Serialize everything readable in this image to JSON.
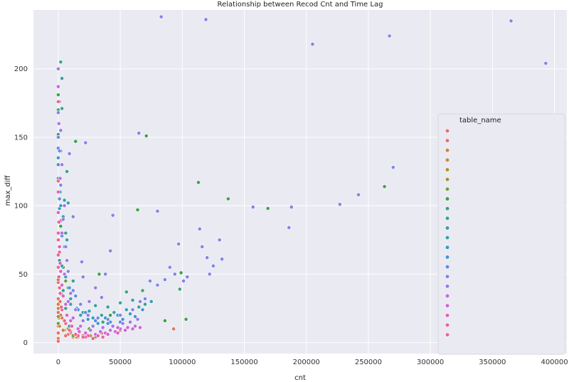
{
  "chart_data": {
    "type": "scatter",
    "title": "Relationship between Recod Cnt and Time Lag",
    "xlabel": "cnt",
    "ylabel": "max_diff",
    "xlim": [
      -20000,
      410000
    ],
    "ylim": [
      -8,
      243
    ],
    "xticks": [
      0,
      50000,
      100000,
      150000,
      200000,
      250000,
      300000,
      350000,
      400000
    ],
    "yticks": [
      0,
      50,
      100,
      150,
      200
    ],
    "grid": true,
    "background": "#eaeaf2",
    "legend": {
      "title": "table_name",
      "placement": "right",
      "colors": [
        "#e8697a",
        "#e07460",
        "#d77f3d",
        "#c8883b",
        "#ad9133",
        "#8f9a34",
        "#6da23a",
        "#3ca34b",
        "#3ca475",
        "#3aa38c",
        "#39a19b",
        "#39a0ab",
        "#3a9dbb",
        "#4496d2",
        "#5c8de0",
        "#8184e6",
        "#9e78e5",
        "#bb6de0",
        "#d164d4",
        "#e05fc0",
        "#e862a4",
        "#ea6886"
      ]
    },
    "series": [
      {
        "color": "#e8697a",
        "points": [
          [
            0,
            22
          ],
          [
            0,
            44
          ],
          [
            800,
            60
          ],
          [
            1000,
            66
          ],
          [
            2000,
            89
          ],
          [
            5000,
            9
          ],
          [
            8000,
            6
          ],
          [
            12000,
            4
          ],
          [
            20000,
            5
          ],
          [
            35000,
            7
          ],
          [
            0,
            12
          ],
          [
            0,
            2
          ],
          [
            3000,
            18
          ]
        ]
      },
      {
        "color": "#e07460",
        "points": [
          [
            0,
            32
          ],
          [
            1500,
            30
          ],
          [
            6000,
            5
          ],
          [
            30000,
            6
          ],
          [
            93000,
            10
          ],
          [
            0,
            7
          ]
        ]
      },
      {
        "color": "#d77f3d",
        "points": [
          [
            0,
            28
          ],
          [
            1000,
            12
          ],
          [
            4000,
            9
          ],
          [
            16000,
            4
          ],
          [
            50000,
            9
          ],
          [
            0,
            3
          ]
        ]
      },
      {
        "color": "#c8883b",
        "points": [
          [
            0,
            25
          ],
          [
            500,
            18
          ],
          [
            10000,
            7
          ],
          [
            40000,
            6
          ]
        ]
      },
      {
        "color": "#ad9133",
        "points": [
          [
            0,
            46
          ],
          [
            2000,
            20
          ],
          [
            15000,
            4
          ],
          [
            26000,
            5
          ]
        ]
      },
      {
        "color": "#8f9a34",
        "points": [
          [
            0,
            19
          ],
          [
            8000,
            10
          ],
          [
            30000,
            4
          ]
        ]
      },
      {
        "color": "#6da23a",
        "points": [
          [
            0,
            14
          ],
          [
            6000,
            45
          ],
          [
            12000,
            5
          ],
          [
            60000,
            10
          ]
        ]
      },
      {
        "color": "#3ca34b",
        "points": [
          [
            0,
            181
          ],
          [
            2000,
            85
          ],
          [
            4000,
            55
          ],
          [
            8000,
            40
          ],
          [
            14000,
            147
          ],
          [
            33000,
            50
          ],
          [
            42000,
            20
          ],
          [
            64000,
            97
          ],
          [
            71000,
            151
          ],
          [
            86000,
            16
          ],
          [
            103000,
            17
          ],
          [
            99000,
            51
          ],
          [
            113000,
            117
          ],
          [
            137000,
            105
          ],
          [
            169000,
            98
          ],
          [
            263000,
            114
          ],
          [
            8000,
            30
          ],
          [
            25000,
            10
          ]
        ]
      },
      {
        "color": "#3ca475",
        "points": [
          [
            0,
            152
          ],
          [
            1000,
            60
          ],
          [
            3000,
            35
          ],
          [
            9000,
            12
          ],
          [
            36000,
            15
          ],
          [
            55000,
            37
          ],
          [
            68000,
            38
          ],
          [
            98000,
            39
          ]
        ]
      },
      {
        "color": "#3aa38c",
        "points": [
          [
            0,
            170
          ],
          [
            2000,
            80
          ],
          [
            3000,
            171
          ],
          [
            7000,
            125
          ],
          [
            12000,
            45
          ],
          [
            6000,
            25
          ],
          [
            4000,
            38
          ]
        ]
      },
      {
        "color": "#39a19b",
        "points": [
          [
            500,
            150
          ],
          [
            2000,
            140
          ],
          [
            5000,
            104
          ],
          [
            6000,
            80
          ],
          [
            10000,
            32
          ],
          [
            20000,
            22
          ],
          [
            30000,
            27
          ],
          [
            40000,
            26
          ],
          [
            50000,
            29
          ],
          [
            60000,
            31
          ],
          [
            70000,
            28
          ],
          [
            3000,
            193
          ],
          [
            2000,
            205
          ]
        ]
      },
      {
        "color": "#39a0ab",
        "points": [
          [
            0,
            120
          ],
          [
            1500,
            110
          ],
          [
            4000,
            92
          ],
          [
            7000,
            75
          ],
          [
            15000,
            25
          ],
          [
            25000,
            23
          ],
          [
            35000,
            20
          ],
          [
            45000,
            22
          ],
          [
            55000,
            24
          ],
          [
            65000,
            26
          ]
        ]
      },
      {
        "color": "#3a9dbb",
        "points": [
          [
            0,
            130
          ],
          [
            1000,
            98
          ],
          [
            3000,
            56
          ],
          [
            6000,
            48
          ],
          [
            10000,
            28
          ],
          [
            18000,
            20
          ],
          [
            28000,
            18
          ],
          [
            38000,
            18
          ],
          [
            48000,
            20
          ],
          [
            58000,
            21
          ],
          [
            68000,
            24
          ],
          [
            75000,
            30
          ],
          [
            8000,
            102
          ]
        ]
      },
      {
        "color": "#4496d2",
        "points": [
          [
            0,
            135
          ],
          [
            2000,
            100
          ],
          [
            5000,
            70
          ],
          [
            9000,
            40
          ],
          [
            16000,
            24
          ],
          [
            24000,
            17
          ],
          [
            32000,
            14
          ],
          [
            42000,
            15
          ],
          [
            52000,
            17
          ],
          [
            62000,
            19
          ]
        ]
      },
      {
        "color": "#5c8de0",
        "points": [
          [
            0,
            142
          ],
          [
            1000,
            105
          ],
          [
            3000,
            78
          ],
          [
            8000,
            52
          ],
          [
            14000,
            34
          ],
          [
            22000,
            22
          ],
          [
            30000,
            16
          ],
          [
            40000,
            14
          ],
          [
            50000,
            15
          ]
        ]
      },
      {
        "color": "#8184e6",
        "points": [
          [
            0,
            168
          ],
          [
            0,
            150
          ],
          [
            1000,
            140
          ],
          [
            2000,
            115
          ],
          [
            4000,
            90
          ],
          [
            6000,
            70
          ],
          [
            8000,
            52
          ],
          [
            12000,
            38
          ],
          [
            18000,
            28
          ],
          [
            24000,
            20
          ],
          [
            32000,
            18
          ],
          [
            40000,
            17
          ],
          [
            50000,
            20
          ],
          [
            60000,
            24
          ],
          [
            66000,
            30
          ],
          [
            70000,
            32
          ],
          [
            74000,
            45
          ],
          [
            80000,
            42
          ],
          [
            86000,
            46
          ],
          [
            90000,
            55
          ],
          [
            94000,
            50
          ],
          [
            97000,
            72
          ],
          [
            101000,
            45
          ],
          [
            104000,
            48
          ],
          [
            114000,
            83
          ],
          [
            116000,
            70
          ],
          [
            120000,
            62
          ],
          [
            122000,
            50
          ],
          [
            125000,
            56
          ],
          [
            130000,
            75
          ],
          [
            132000,
            61
          ],
          [
            157000,
            99
          ],
          [
            186000,
            84
          ],
          [
            188000,
            99
          ],
          [
            227000,
            101
          ],
          [
            242000,
            108
          ],
          [
            270000,
            128
          ],
          [
            83000,
            238
          ],
          [
            119000,
            236
          ],
          [
            205000,
            218
          ],
          [
            267000,
            224
          ],
          [
            365000,
            235
          ],
          [
            393000,
            204
          ],
          [
            22000,
            146
          ],
          [
            44000,
            93
          ],
          [
            65000,
            153
          ],
          [
            80000,
            96
          ],
          [
            42000,
            67
          ],
          [
            19000,
            59
          ],
          [
            20000,
            48
          ],
          [
            38000,
            50
          ],
          [
            12000,
            92
          ],
          [
            9000,
            138
          ]
        ]
      },
      {
        "color": "#9e78e5",
        "points": [
          [
            0,
            200
          ],
          [
            1000,
            176
          ],
          [
            2000,
            155
          ],
          [
            3000,
            130
          ],
          [
            5000,
            100
          ],
          [
            7000,
            60
          ],
          [
            10000,
            36
          ],
          [
            14000,
            24
          ],
          [
            20000,
            16
          ],
          [
            28000,
            12
          ],
          [
            36000,
            11
          ],
          [
            44000,
            12
          ],
          [
            52000,
            14
          ],
          [
            58000,
            15
          ],
          [
            64000,
            17
          ],
          [
            30000,
            40
          ],
          [
            25000,
            30
          ],
          [
            35000,
            33
          ]
        ]
      },
      {
        "color": "#bb6de0",
        "points": [
          [
            0,
            187
          ],
          [
            500,
            160
          ],
          [
            1500,
            120
          ],
          [
            3000,
            80
          ],
          [
            5000,
            50
          ],
          [
            8000,
            30
          ],
          [
            12000,
            18
          ],
          [
            18000,
            12
          ],
          [
            26000,
            9
          ],
          [
            34000,
            8
          ],
          [
            42000,
            9
          ],
          [
            50000,
            10
          ],
          [
            56000,
            11
          ],
          [
            62000,
            12
          ]
        ]
      },
      {
        "color": "#d164d4",
        "points": [
          [
            0,
            95
          ],
          [
            500,
            75
          ],
          [
            1500,
            58
          ],
          [
            3000,
            42
          ],
          [
            6000,
            28
          ],
          [
            10000,
            16
          ],
          [
            16000,
            10
          ],
          [
            22000,
            7
          ],
          [
            30000,
            6
          ],
          [
            38000,
            7
          ],
          [
            46000,
            8
          ],
          [
            54000,
            9
          ],
          [
            60000,
            10
          ],
          [
            66000,
            11
          ],
          [
            48000,
            11
          ]
        ]
      },
      {
        "color": "#e05fc0",
        "points": [
          [
            0,
            110
          ],
          [
            500,
            88
          ],
          [
            1000,
            70
          ],
          [
            2000,
            52
          ],
          [
            4000,
            34
          ],
          [
            7000,
            20
          ],
          [
            11000,
            12
          ],
          [
            17000,
            8
          ],
          [
            24000,
            5
          ],
          [
            32000,
            5
          ],
          [
            40000,
            6
          ],
          [
            48000,
            7
          ]
        ]
      },
      {
        "color": "#e862a4",
        "points": [
          [
            0,
            80
          ],
          [
            0,
            64
          ],
          [
            500,
            48
          ],
          [
            1500,
            36
          ],
          [
            3000,
            24
          ],
          [
            6000,
            14
          ],
          [
            10000,
            8
          ],
          [
            16000,
            5
          ],
          [
            22000,
            4
          ],
          [
            28000,
            3
          ],
          [
            36000,
            4
          ]
        ]
      },
      {
        "color": "#ea6886",
        "points": [
          [
            0,
            176
          ],
          [
            0,
            118
          ],
          [
            0,
            75
          ],
          [
            0,
            55
          ],
          [
            1000,
            40
          ],
          [
            2500,
            26
          ],
          [
            5000,
            16
          ],
          [
            9000,
            9
          ],
          [
            14000,
            6
          ],
          [
            20000,
            4
          ],
          [
            0,
            1
          ]
        ]
      }
    ]
  }
}
